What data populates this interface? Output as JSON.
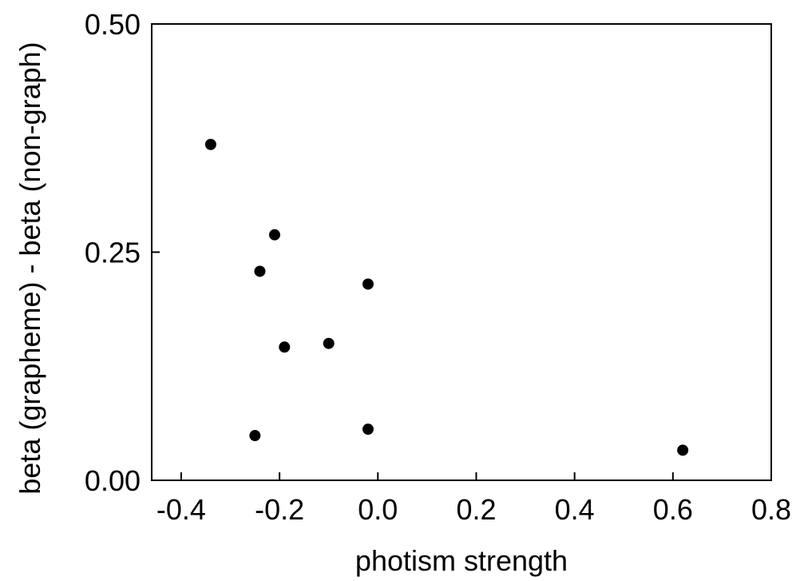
{
  "chart_data": {
    "type": "scatter",
    "xlabel": "photism strength",
    "ylabel": "beta (grapheme) - beta (non-graph)",
    "xlim": [
      -0.46,
      0.8
    ],
    "ylim": [
      0,
      0.5
    ],
    "xticks": [
      -0.4,
      -0.2,
      0.0,
      0.2,
      0.4,
      0.6,
      0.8
    ],
    "xtick_labels": [
      "-0.4",
      "-0.2",
      "0.0",
      "0.2",
      "0.4",
      "0.6",
      "0.8"
    ],
    "yticks": [
      0,
      0.25,
      0.5
    ],
    "ytick_labels": [
      "0.00",
      "0.25",
      "0.50"
    ],
    "grid": false,
    "legend": "none",
    "colors": {
      "marker": "#000000",
      "axis": "#000000",
      "background": "#ffffff"
    },
    "series": [
      {
        "x": [
          -0.34,
          -0.21,
          -0.24,
          -0.02,
          -0.19,
          -0.1,
          -0.25,
          -0.02,
          0.62
        ],
        "y": [
          0.368,
          0.269,
          0.229,
          0.215,
          0.146,
          0.15,
          0.049,
          0.056,
          0.033
        ]
      }
    ]
  }
}
